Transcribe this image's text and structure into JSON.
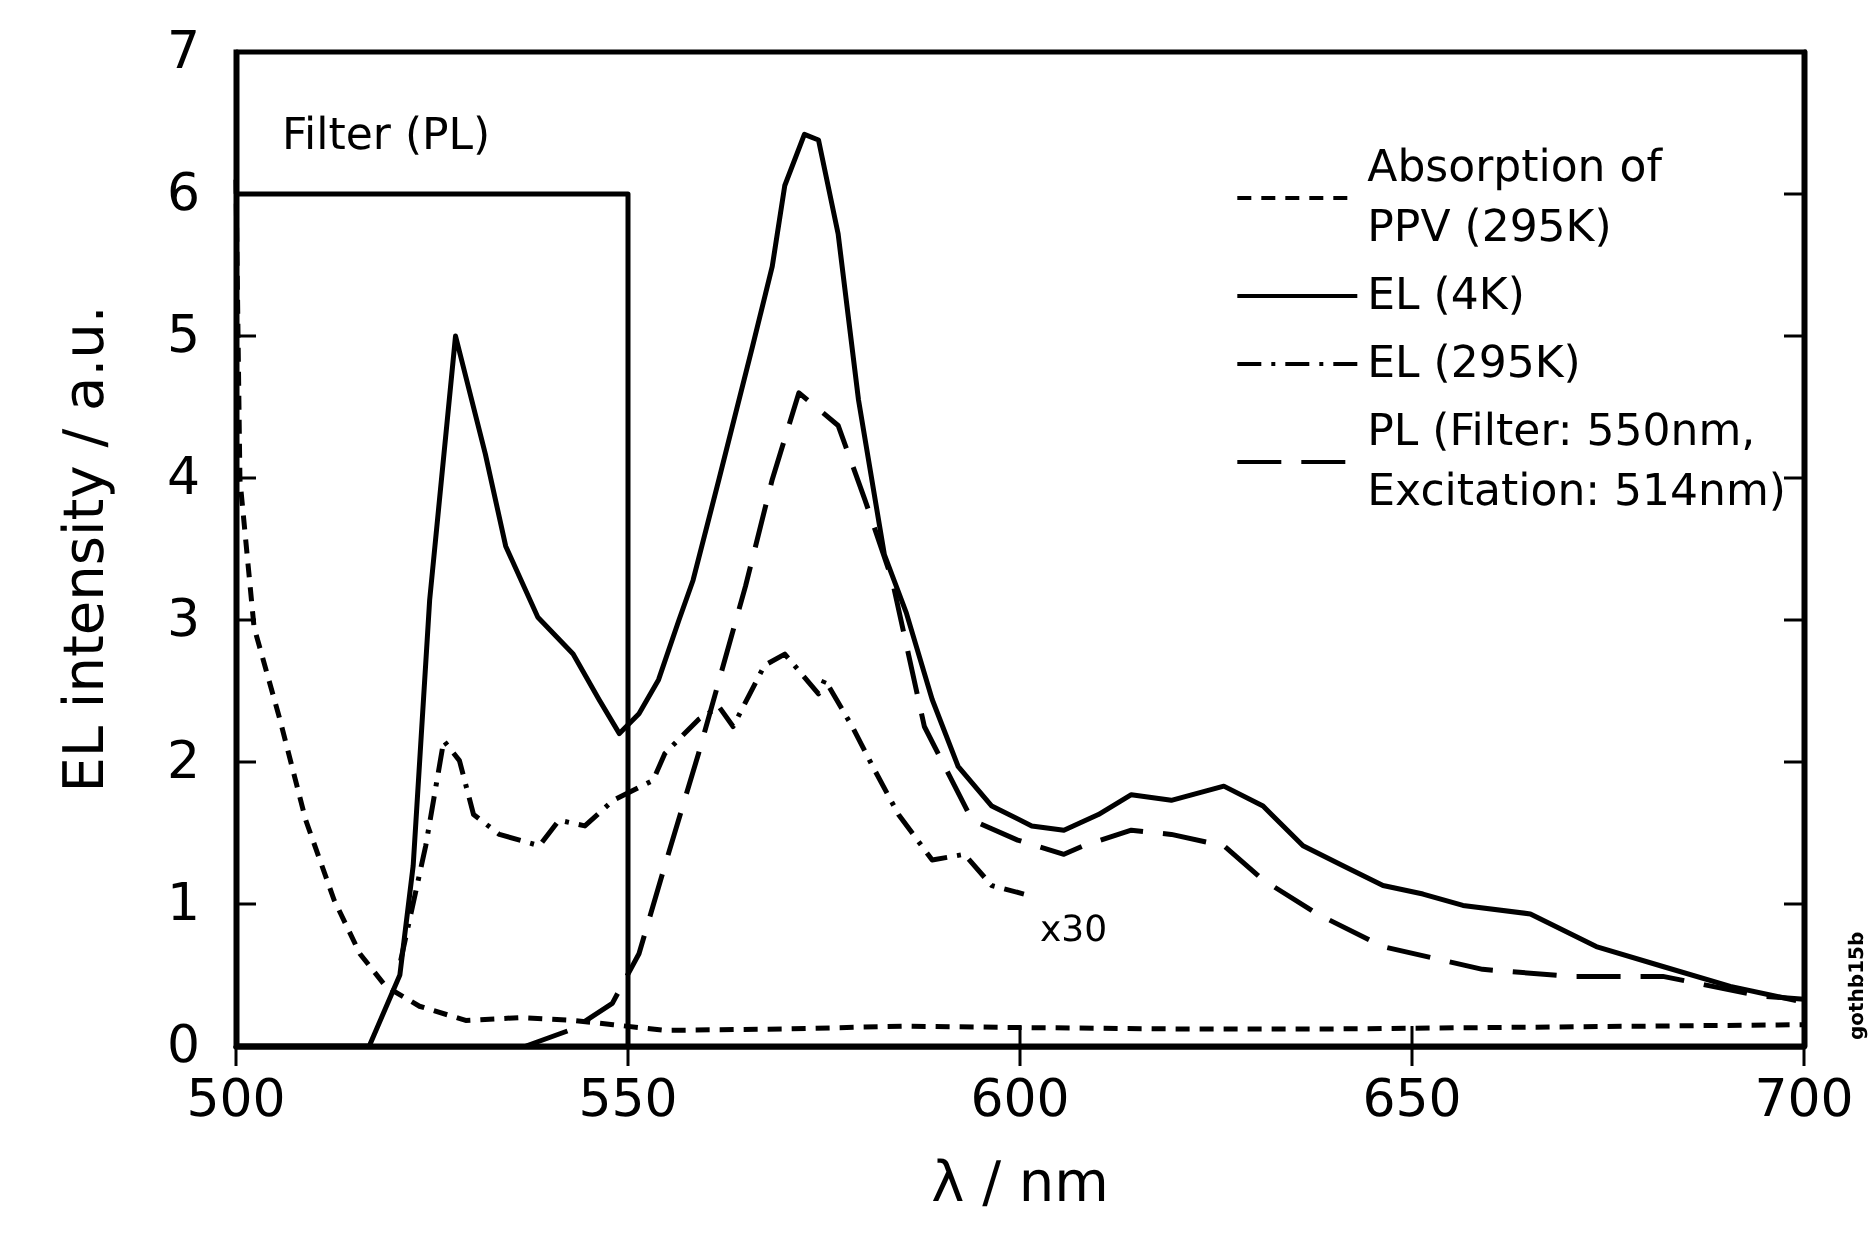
{
  "chart_data": {
    "type": "line",
    "xlabel": "λ / nm",
    "ylabel": "EL intensity / a.u.",
    "xlim": [
      500,
      700
    ],
    "xticks": [
      500,
      550,
      600,
      650,
      700
    ],
    "ylim": [
      0,
      7
    ],
    "yticks": [
      0,
      1,
      2,
      3,
      4,
      5,
      6,
      7
    ],
    "grid": false,
    "legend": "top right",
    "annotations": [
      "x30",
      "gothb15b"
    ],
    "series": [
      {
        "name": "Absorption of\nPPV (295K)",
        "color": "#000000",
        "line_style": "dashed",
        "x": [
          500,
          500.5,
          502.3,
          505.6,
          508.9,
          512.5,
          515.8,
          519.1,
          523.4,
          529.3,
          536.1,
          543,
          548.1,
          554.7,
          570,
          585,
          600,
          620,
          640,
          660,
          680,
          700
        ],
        "values": [
          6.1,
          3.99,
          2.95,
          2.3,
          1.59,
          1.03,
          0.65,
          0.42,
          0.28,
          0.18,
          0.2,
          0.18,
          0.15,
          0.11,
          0.12,
          0.14,
          0.13,
          0.12,
          0.12,
          0.13,
          0.14,
          0.15
        ]
      },
      {
        "name": "EL (4K)",
        "color": "#000000",
        "line_style": "solid",
        "x": [
          500,
          510,
          517,
          520.9,
          522.6,
          524.7,
          528,
          531.8,
          534.4,
          538.5,
          543,
          546.3,
          548.9,
          551.4,
          553.9,
          556.5,
          558.3,
          561.6,
          565.9,
          568.4,
          570,
          572.5,
          574.3,
          576.8,
          579.4,
          582.7,
          585.5,
          588.8,
          592.1,
          596.4,
          601.5,
          605.6,
          610,
          614.2,
          619.3,
          626,
          631,
          636.1,
          641.2,
          646.3,
          651.4,
          656.5,
          665.1,
          673.5,
          682,
          690.6,
          699
        ],
        "values": [
          0,
          0,
          0,
          0.5,
          1.27,
          3.14,
          5.0,
          4.17,
          3.52,
          3.02,
          2.76,
          2.44,
          2.2,
          2.34,
          2.58,
          3.0,
          3.28,
          3.99,
          4.93,
          5.49,
          6.06,
          6.42,
          6.38,
          5.72,
          4.55,
          3.46,
          3.05,
          2.44,
          1.97,
          1.69,
          1.55,
          1.52,
          1.63,
          1.77,
          1.73,
          1.83,
          1.69,
          1.41,
          1.27,
          1.13,
          1.07,
          0.99,
          0.93,
          0.7,
          0.56,
          0.42,
          0.32
        ]
      },
      {
        "name": "EL (295K)",
        "color": "#000000",
        "line_style": "dashdot",
        "x": [
          521,
          524.2,
          526.5,
          528.5,
          530.3,
          533.6,
          538.7,
          541.2,
          544.5,
          548.1,
          553.2,
          554.7,
          559,
          561.6,
          563.4,
          567.4,
          570,
          574.3,
          575.1,
          578.6,
          581.2,
          584.5,
          588.8,
          592.9,
          596.4,
          600.5
        ],
        "values": [
          0.6,
          1.41,
          2.15,
          2.01,
          1.63,
          1.49,
          1.41,
          1.59,
          1.55,
          1.73,
          1.87,
          2.06,
          2.3,
          2.39,
          2.25,
          2.68,
          2.76,
          2.48,
          2.58,
          2.25,
          1.97,
          1.63,
          1.31,
          1.35,
          1.13,
          1.07
        ]
      },
      {
        "name": "PL (Filter: 550nm,\nExcitation: 514nm)",
        "color": "#000000",
        "line_style": "longdash",
        "x": [
          537,
          543,
          548,
          551.4,
          554.7,
          559,
          565,
          568.4,
          571.8,
          576.8,
          580.2,
          583.7,
          587.8,
          593.9,
          599.7,
          605.6,
          608.1,
          614.2,
          619.3,
          626,
          631,
          637.9,
          646.3,
          659,
          670.2,
          682,
          694.7,
          700
        ],
        "values": [
          0,
          0.12,
          0.3,
          0.65,
          1.27,
          2.06,
          3.24,
          3.99,
          4.6,
          4.37,
          3.85,
          3.28,
          2.25,
          1.59,
          1.45,
          1.35,
          1.41,
          1.52,
          1.49,
          1.41,
          1.17,
          0.93,
          0.7,
          0.54,
          0.49,
          0.49,
          0.35,
          0.33
        ]
      },
      {
        "name": "Filter (PL)",
        "color": "#000000",
        "line_style": "solid",
        "x": [
          500,
          512,
          550,
          550
        ],
        "values": [
          6,
          6,
          6,
          0
        ]
      }
    ]
  }
}
